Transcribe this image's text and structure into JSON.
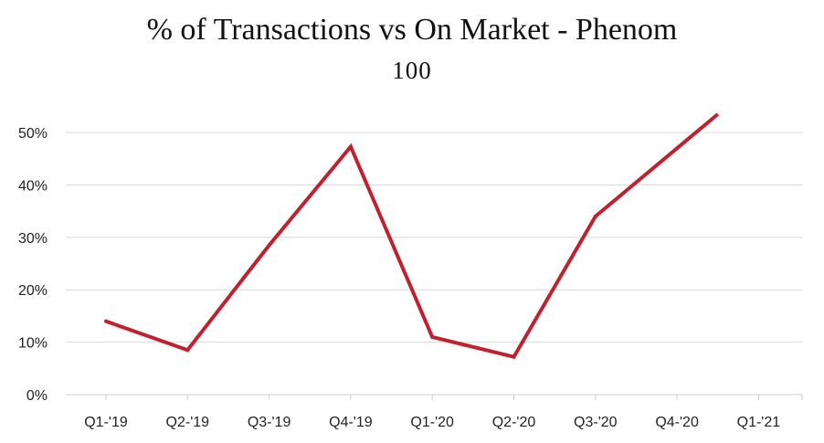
{
  "chart_data": {
    "type": "line",
    "title": "% of Transactions vs On Market - Phenom",
    "subtitle": "100",
    "categories": [
      "Q1-'19",
      "Q2-'19",
      "Q3-'19",
      "Q4-'19",
      "Q1-'20",
      "Q2-'20",
      "Q3-'20",
      "Q4-'20",
      "Q1-'21"
    ],
    "series": [
      {
        "values": [
          14,
          8.5,
          28.5,
          47.3,
          11,
          7.2,
          34,
          47,
          null
        ]
      }
    ],
    "last_point": {
      "x_position": 7.5,
      "value": 53.5
    },
    "y_ticks": [
      "0%",
      "10%",
      "20%",
      "30%",
      "40%",
      "50%"
    ],
    "ylim": [
      0,
      53.5
    ],
    "grid": true,
    "line_color": "#c0212f",
    "grid_color": "#d9d9d9"
  }
}
